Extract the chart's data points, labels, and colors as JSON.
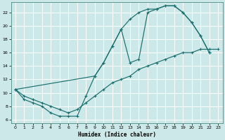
{
  "xlabel": "Humidex (Indice chaleur)",
  "bg_color": "#cde8e8",
  "line_color": "#1a6e6e",
  "grid_color": "#b8d8d8",
  "xlim": [
    -0.5,
    23.5
  ],
  "ylim": [
    5.5,
    23.5
  ],
  "xticks": [
    0,
    1,
    2,
    3,
    4,
    5,
    6,
    7,
    8,
    9,
    10,
    11,
    12,
    13,
    14,
    15,
    16,
    17,
    18,
    19,
    20,
    21,
    22,
    23
  ],
  "yticks": [
    6,
    8,
    10,
    12,
    14,
    16,
    18,
    20,
    22
  ],
  "line1_x": [
    0,
    1,
    2,
    3,
    4,
    5,
    6,
    7,
    8,
    9,
    10,
    11,
    12,
    13,
    14,
    15,
    16,
    17,
    18,
    19,
    20,
    21,
    22
  ],
  "line1_y": [
    10.5,
    9.0,
    8.5,
    8.0,
    7.0,
    6.5,
    6.5,
    6.5,
    9.5,
    12.5,
    14.5,
    17.0,
    19.5,
    14.5,
    15.0,
    22.0,
    22.5,
    23.0,
    23.0,
    22.0,
    20.5,
    18.5,
    16.0
  ],
  "line2_x": [
    0,
    1,
    2,
    3,
    4,
    5,
    6,
    7,
    8,
    9,
    10,
    11,
    12,
    13,
    14,
    15,
    16,
    17,
    18,
    19,
    20,
    21,
    22,
    23
  ],
  "line2_y": [
    10.5,
    9.5,
    9.0,
    8.5,
    8.0,
    7.5,
    7.0,
    7.5,
    8.5,
    9.5,
    10.5,
    11.5,
    12.0,
    12.5,
    13.5,
    14.0,
    14.5,
    15.0,
    15.5,
    16.0,
    16.0,
    16.5,
    16.5,
    16.5
  ],
  "line3_x": [
    0,
    9,
    10,
    11,
    12,
    13,
    14,
    15,
    16,
    17,
    18,
    19,
    20,
    21,
    22
  ],
  "line3_y": [
    10.5,
    12.5,
    14.5,
    17.0,
    19.5,
    21.0,
    22.0,
    22.5,
    22.5,
    23.0,
    23.0,
    22.0,
    20.5,
    18.5,
    16.0
  ]
}
